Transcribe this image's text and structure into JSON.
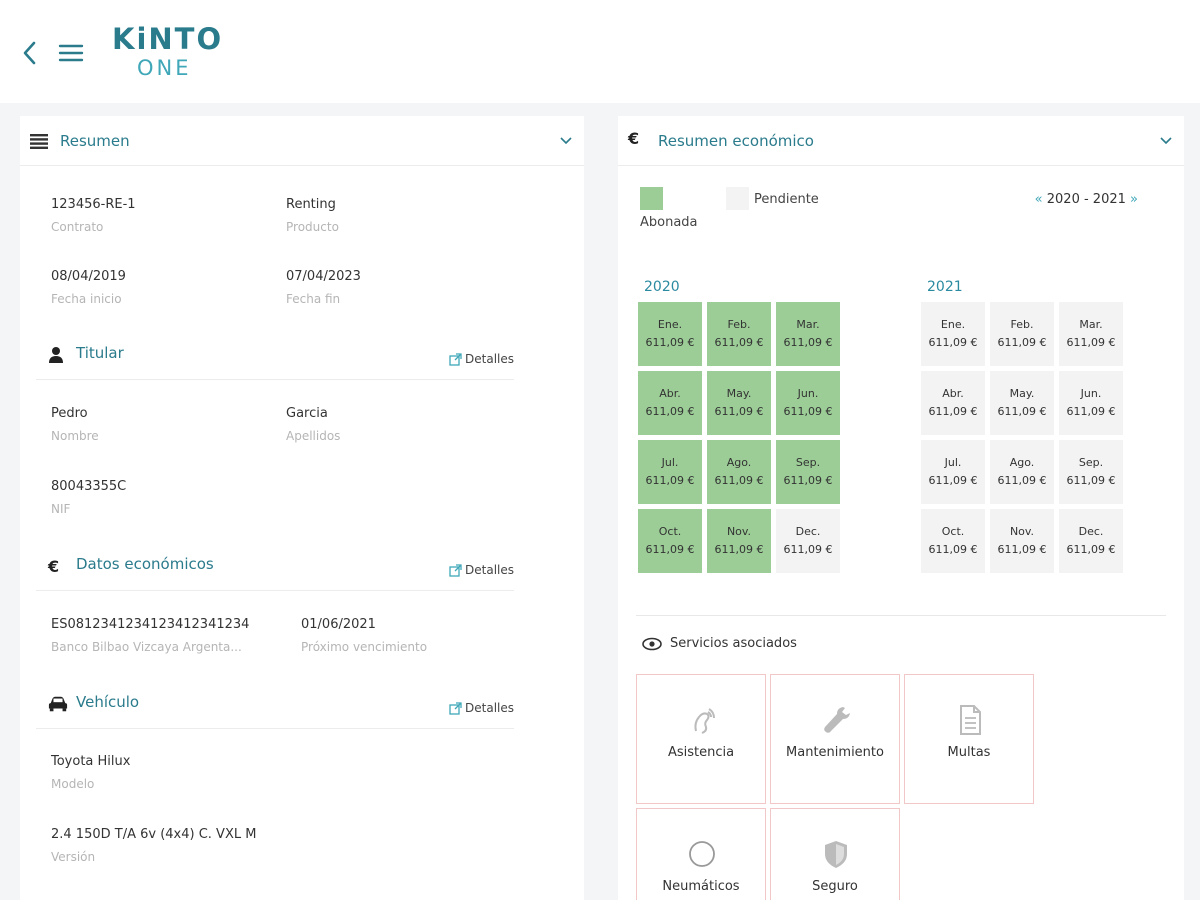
{
  "header": {
    "logo_top": "KiNTO",
    "logo_bottom": "ONE"
  },
  "summary": {
    "title": "Resumen",
    "contract": {
      "value": "123456-RE-1",
      "label": "Contrato"
    },
    "product": {
      "value": "Renting",
      "label": "Producto"
    },
    "start": {
      "value": "08/04/2019",
      "label": "Fecha inicio"
    },
    "end": {
      "value": "07/04/2023",
      "label": "Fecha fin"
    },
    "holder": {
      "title": "Titular",
      "details": "Detalles",
      "name": {
        "value": "Pedro",
        "label": "Nombre"
      },
      "surname": {
        "value": "Garcia",
        "label": "Apellidos"
      },
      "nif": {
        "value": "80043355C",
        "label": "NIF"
      }
    },
    "economic": {
      "title": "Datos económicos",
      "details": "Detalles",
      "iban": {
        "value": "ES0812341234123412341234",
        "label": "Banco Bilbao Vizcaya Argenta..."
      },
      "due": {
        "value": "01/06/2021",
        "label": "Próximo vencimiento"
      }
    },
    "vehicle": {
      "title": "Vehículo",
      "details": "Detalles",
      "model": {
        "value": "Toyota Hilux",
        "label": "Modelo"
      },
      "version": {
        "value": "2.4 150D T/A 6v (4x4) C. VXL M",
        "label": "Versión"
      }
    }
  },
  "economic_summary": {
    "title": "Resumen económico",
    "legend_paid": "Abonada",
    "legend_pending": "Pendiente",
    "paid_color": "#9ccd97",
    "pending_color": "#f3f3f3",
    "range_prev": "«",
    "range": "2020 - 2021",
    "range_next": "»",
    "years": [
      {
        "year": "2020",
        "months": [
          {
            "m": "Ene.",
            "amount": "611,09 €",
            "paid": true
          },
          {
            "m": "Feb.",
            "amount": "611,09 €",
            "paid": true
          },
          {
            "m": "Mar.",
            "amount": "611,09 €",
            "paid": true
          },
          {
            "m": "Abr.",
            "amount": "611,09 €",
            "paid": true
          },
          {
            "m": "May.",
            "amount": "611,09 €",
            "paid": true
          },
          {
            "m": "Jun.",
            "amount": "611,09 €",
            "paid": true
          },
          {
            "m": "Jul.",
            "amount": "611,09 €",
            "paid": true
          },
          {
            "m": "Ago.",
            "amount": "611,09 €",
            "paid": true
          },
          {
            "m": "Sep.",
            "amount": "611,09 €",
            "paid": true
          },
          {
            "m": "Oct.",
            "amount": "611,09 €",
            "paid": true
          },
          {
            "m": "Nov.",
            "amount": "611,09 €",
            "paid": true
          },
          {
            "m": "Dec.",
            "amount": "611,09 €",
            "paid": false
          }
        ]
      },
      {
        "year": "2021",
        "months": [
          {
            "m": "Ene.",
            "amount": "611,09 €",
            "paid": false
          },
          {
            "m": "Feb.",
            "amount": "611,09 €",
            "paid": false
          },
          {
            "m": "Mar.",
            "amount": "611,09 €",
            "paid": false
          },
          {
            "m": "Abr.",
            "amount": "611,09 €",
            "paid": false
          },
          {
            "m": "May.",
            "amount": "611,09 €",
            "paid": false
          },
          {
            "m": "Jun.",
            "amount": "611,09 €",
            "paid": false
          },
          {
            "m": "Jul.",
            "amount": "611,09 €",
            "paid": false
          },
          {
            "m": "Ago.",
            "amount": "611,09 €",
            "paid": false
          },
          {
            "m": "Sep.",
            "amount": "611,09 €",
            "paid": false
          },
          {
            "m": "Oct.",
            "amount": "611,09 €",
            "paid": false
          },
          {
            "m": "Nov.",
            "amount": "611,09 €",
            "paid": false
          },
          {
            "m": "Dec.",
            "amount": "611,09 €",
            "paid": false
          }
        ]
      }
    ],
    "services_title": "Servicios asociados",
    "services": [
      {
        "label": "Asistencia",
        "icon": "assistance-icon"
      },
      {
        "label": "Mantenimiento",
        "icon": "wrench-icon"
      },
      {
        "label": "Multas",
        "icon": "document-icon"
      },
      {
        "label": "Neumáticos",
        "icon": "tire-icon"
      },
      {
        "label": "Seguro",
        "icon": "shield-icon"
      }
    ]
  }
}
